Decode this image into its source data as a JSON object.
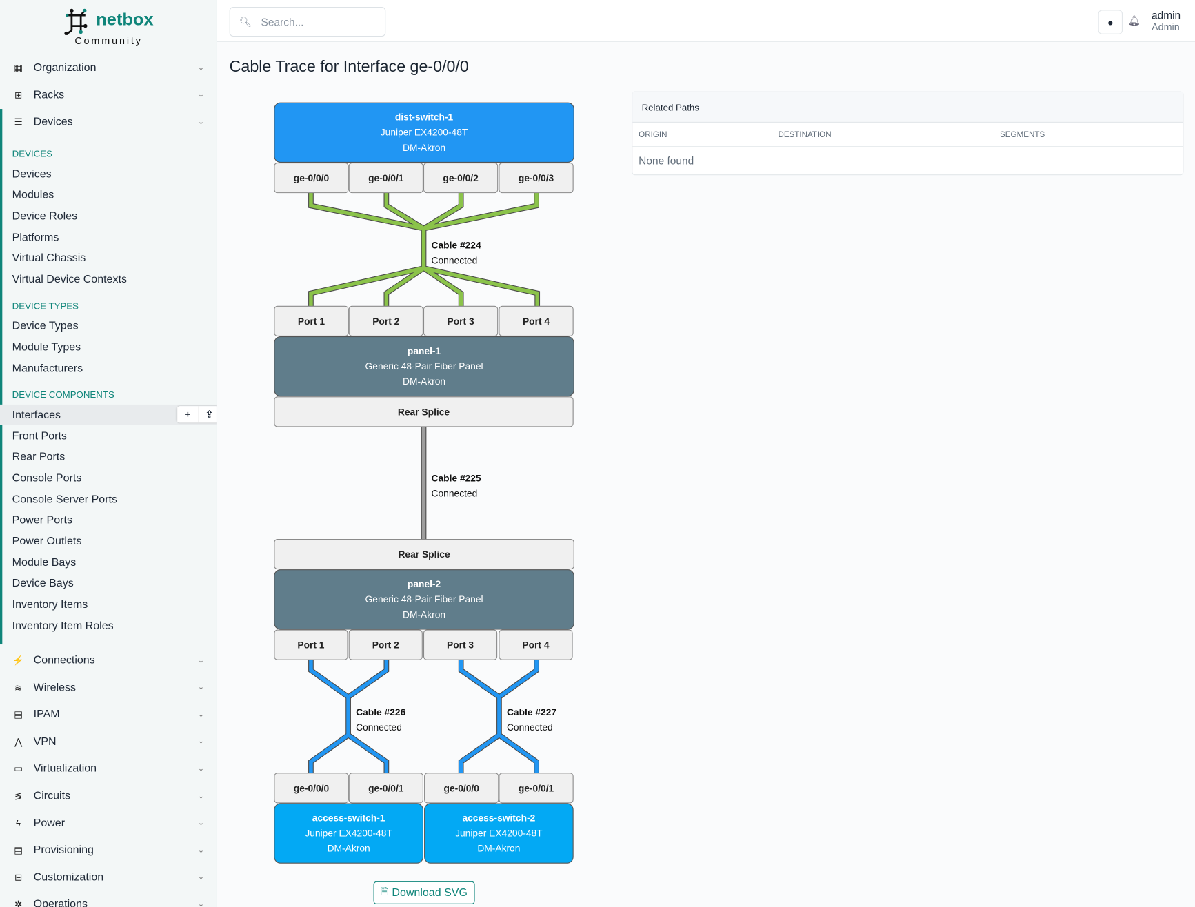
{
  "brand": {
    "name": "netbox",
    "edition": "Community",
    "color": "#0f857a"
  },
  "header": {
    "search_placeholder": "Search...",
    "user": "admin",
    "role": "Admin",
    "icons": [
      "lightbulb-icon",
      "bell-icon"
    ]
  },
  "sidebar": {
    "top_menus": [
      {
        "label": "Organization",
        "icon": "building-icon"
      },
      {
        "label": "Racks",
        "icon": "rack-icon"
      },
      {
        "label": "Devices",
        "icon": "server-icon"
      }
    ],
    "sections": [
      {
        "title": "DEVICES",
        "items": [
          "Devices",
          "Modules",
          "Device Roles",
          "Platforms",
          "Virtual Chassis",
          "Virtual Device Contexts"
        ]
      },
      {
        "title": "DEVICE TYPES",
        "items": [
          "Device Types",
          "Module Types",
          "Manufacturers"
        ]
      },
      {
        "title": "DEVICE COMPONENTS",
        "items": [
          "Interfaces",
          "Front Ports",
          "Rear Ports",
          "Console Ports",
          "Console Server Ports",
          "Power Ports",
          "Power Outlets",
          "Module Bays",
          "Device Bays",
          "Inventory Items",
          "Inventory Item Roles"
        ]
      }
    ],
    "active_item": "Interfaces",
    "active_buttons": [
      "+",
      "⇪"
    ],
    "bottom_menus": [
      {
        "label": "Connections",
        "icon": "plug-icon"
      },
      {
        "label": "Wireless",
        "icon": "wifi-icon"
      },
      {
        "label": "IPAM",
        "icon": "ip-icon"
      },
      {
        "label": "VPN",
        "icon": "vpn-icon"
      },
      {
        "label": "Virtualization",
        "icon": "monitor-icon"
      },
      {
        "label": "Circuits",
        "icon": "circuit-icon"
      },
      {
        "label": "Power",
        "icon": "bolt-icon"
      },
      {
        "label": "Provisioning",
        "icon": "file-icon"
      },
      {
        "label": "Customization",
        "icon": "toolbox-icon"
      },
      {
        "label": "Operations",
        "icon": "cogs-icon"
      }
    ]
  },
  "page": {
    "title": "Cable Trace for Interface ge-0/0/0",
    "download_label": "Download SVG"
  },
  "related_paths": {
    "title": "Related Paths",
    "columns": [
      "ORIGIN",
      "DESTINATION",
      "SEGMENTS"
    ],
    "empty": "None found"
  },
  "trace": {
    "colors": {
      "switch": "#2196f3",
      "access": "#03a9f4",
      "panel": "#607d8b",
      "cable_green": "#8bc34a",
      "cable_grey": "#9e9e9e",
      "cable_blue": "#2196f3"
    },
    "dist_switch": {
      "name": "dist-switch-1",
      "type": "Juniper EX4200-48T",
      "site": "DM-Akron",
      "ports": [
        "ge-0/0/0",
        "ge-0/0/1",
        "ge-0/0/2",
        "ge-0/0/3"
      ]
    },
    "cable1": {
      "label": "Cable #224",
      "status": "Connected"
    },
    "panel1": {
      "front_ports": [
        "Port 1",
        "Port 2",
        "Port 3",
        "Port 4"
      ],
      "name": "panel-1",
      "type": "Generic 48-Pair Fiber Panel",
      "site": "DM-Akron",
      "rear": "Rear Splice"
    },
    "cable2": {
      "label": "Cable #225",
      "status": "Connected"
    },
    "panel2": {
      "rear": "Rear Splice",
      "name": "panel-2",
      "type": "Generic 48-Pair Fiber Panel",
      "site": "DM-Akron",
      "front_ports": [
        "Port 1",
        "Port 2",
        "Port 3",
        "Port 4"
      ]
    },
    "cable3": {
      "label": "Cable #226",
      "status": "Connected"
    },
    "cable4": {
      "label": "Cable #227",
      "status": "Connected"
    },
    "access_switches": [
      {
        "name": "access-switch-1",
        "type": "Juniper EX4200-48T",
        "site": "DM-Akron",
        "ports": [
          "ge-0/0/0",
          "ge-0/0/1"
        ]
      },
      {
        "name": "access-switch-2",
        "type": "Juniper EX4200-48T",
        "site": "DM-Akron",
        "ports": [
          "ge-0/0/0",
          "ge-0/0/1"
        ]
      }
    ]
  }
}
